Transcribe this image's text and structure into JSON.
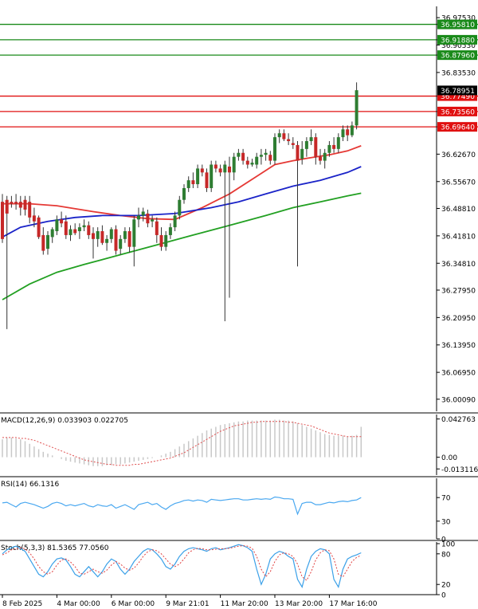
{
  "colors": {
    "background": "#ffffff",
    "bull": "#2e7d32",
    "bear": "#c62828",
    "ma_fast": "#e53935",
    "ma_mid": "#1a23c8",
    "ma_slow": "#22a022",
    "resistance": "#1a8a1a",
    "support": "#e01010",
    "macd_hist": "#c8c8c8",
    "macd_signal": "#e05050",
    "rsi": "#4aa8f0",
    "stoch_main": "#3aa0e8",
    "stoch_signal": "#e04040",
    "axis": "#000000"
  },
  "chart_data": [
    {
      "type": "candlestick",
      "name": "price",
      "title": "",
      "ylim": [
        35.97,
        37.0
      ],
      "y_ticks": [
        "36.97530",
        "36.90530",
        "36.83530",
        "36.62670",
        "36.55670",
        "36.48810",
        "36.41810",
        "36.34810",
        "36.27950",
        "36.20950",
        "36.13950",
        "36.06950",
        "36.00090"
      ],
      "grid": false,
      "x_labels": [
        "8 Feb 2025",
        "4 Mar 00:00",
        "6 Mar 00:00",
        "9 Mar 21:01",
        "11 Mar 20:00",
        "13 Mar 20:00",
        "17 Mar 16:00"
      ],
      "x_label_index": [
        0,
        12,
        24,
        36,
        48,
        60,
        72
      ],
      "candles": [
        {
          "o": 36.505,
          "h": 36.525,
          "l": 36.4,
          "c": 36.41
        },
        {
          "o": 36.51,
          "h": 36.52,
          "l": 36.18,
          "c": 36.475
        },
        {
          "o": 36.505,
          "h": 36.52,
          "l": 36.49,
          "c": 36.5
        },
        {
          "o": 36.505,
          "h": 36.525,
          "l": 36.485,
          "c": 36.5
        },
        {
          "o": 36.505,
          "h": 36.52,
          "l": 36.47,
          "c": 36.49
        },
        {
          "o": 36.51,
          "h": 36.52,
          "l": 36.47,
          "c": 36.485
        },
        {
          "o": 36.505,
          "h": 36.52,
          "l": 36.45,
          "c": 36.465
        },
        {
          "o": 36.47,
          "h": 36.49,
          "l": 36.44,
          "c": 36.455
        },
        {
          "o": 36.465,
          "h": 36.47,
          "l": 36.41,
          "c": 36.415
        },
        {
          "o": 36.42,
          "h": 36.44,
          "l": 36.37,
          "c": 36.38
        },
        {
          "o": 36.385,
          "h": 36.43,
          "l": 36.37,
          "c": 36.42
        },
        {
          "o": 36.415,
          "h": 36.44,
          "l": 36.4,
          "c": 36.435
        },
        {
          "o": 36.43,
          "h": 36.47,
          "l": 36.42,
          "c": 36.46
        },
        {
          "o": 36.46,
          "h": 36.48,
          "l": 36.44,
          "c": 36.45
        },
        {
          "o": 36.455,
          "h": 36.47,
          "l": 36.41,
          "c": 36.42
        },
        {
          "o": 36.42,
          "h": 36.445,
          "l": 36.405,
          "c": 36.435
        },
        {
          "o": 36.435,
          "h": 36.45,
          "l": 36.42,
          "c": 36.425
        },
        {
          "o": 36.43,
          "h": 36.45,
          "l": 36.41,
          "c": 36.44
        },
        {
          "o": 36.44,
          "h": 36.46,
          "l": 36.43,
          "c": 36.445
        },
        {
          "o": 36.445,
          "h": 36.455,
          "l": 36.41,
          "c": 36.42
        },
        {
          "o": 36.425,
          "h": 36.44,
          "l": 36.36,
          "c": 36.41
        },
        {
          "o": 36.41,
          "h": 36.44,
          "l": 36.39,
          "c": 36.43
        },
        {
          "o": 36.43,
          "h": 36.445,
          "l": 36.395,
          "c": 36.4
        },
        {
          "o": 36.4,
          "h": 36.42,
          "l": 36.38,
          "c": 36.41
        },
        {
          "o": 36.41,
          "h": 36.44,
          "l": 36.4,
          "c": 36.435
        },
        {
          "o": 36.435,
          "h": 36.445,
          "l": 36.37,
          "c": 36.38
        },
        {
          "o": 36.385,
          "h": 36.42,
          "l": 36.37,
          "c": 36.41
        },
        {
          "o": 36.41,
          "h": 36.44,
          "l": 36.4,
          "c": 36.43
        },
        {
          "o": 36.43,
          "h": 36.44,
          "l": 36.375,
          "c": 36.39
        },
        {
          "o": 36.39,
          "h": 36.47,
          "l": 36.34,
          "c": 36.46
        },
        {
          "o": 36.46,
          "h": 36.49,
          "l": 36.44,
          "c": 36.47
        },
        {
          "o": 36.47,
          "h": 36.49,
          "l": 36.455,
          "c": 36.48
        },
        {
          "o": 36.475,
          "h": 36.485,
          "l": 36.44,
          "c": 36.45
        },
        {
          "o": 36.455,
          "h": 36.47,
          "l": 36.44,
          "c": 36.46
        },
        {
          "o": 36.455,
          "h": 36.465,
          "l": 36.4,
          "c": 36.42
        },
        {
          "o": 36.42,
          "h": 36.44,
          "l": 36.38,
          "c": 36.39
        },
        {
          "o": 36.39,
          "h": 36.43,
          "l": 36.38,
          "c": 36.42
        },
        {
          "o": 36.42,
          "h": 36.45,
          "l": 36.41,
          "c": 36.44
        },
        {
          "o": 36.44,
          "h": 36.48,
          "l": 36.43,
          "c": 36.47
        },
        {
          "o": 36.47,
          "h": 36.52,
          "l": 36.46,
          "c": 36.51
        },
        {
          "o": 36.51,
          "h": 36.55,
          "l": 36.5,
          "c": 36.54
        },
        {
          "o": 36.54,
          "h": 36.57,
          "l": 36.53,
          "c": 36.56
        },
        {
          "o": 36.56,
          "h": 36.58,
          "l": 36.54,
          "c": 36.55
        },
        {
          "o": 36.55,
          "h": 36.6,
          "l": 36.54,
          "c": 36.59
        },
        {
          "o": 36.59,
          "h": 36.6,
          "l": 36.57,
          "c": 36.58
        },
        {
          "o": 36.58,
          "h": 36.59,
          "l": 36.53,
          "c": 36.54
        },
        {
          "o": 36.54,
          "h": 36.61,
          "l": 36.53,
          "c": 36.6
        },
        {
          "o": 36.6,
          "h": 36.61,
          "l": 36.58,
          "c": 36.59
        },
        {
          "o": 36.59,
          "h": 36.6,
          "l": 36.57,
          "c": 36.58
        },
        {
          "o": 36.58,
          "h": 36.61,
          "l": 36.2,
          "c": 36.6
        },
        {
          "o": 36.595,
          "h": 36.62,
          "l": 36.26,
          "c": 36.58
        },
        {
          "o": 36.58,
          "h": 36.63,
          "l": 36.56,
          "c": 36.62
        },
        {
          "o": 36.62,
          "h": 36.64,
          "l": 36.61,
          "c": 36.63
        },
        {
          "o": 36.63,
          "h": 36.64,
          "l": 36.6,
          "c": 36.61
        },
        {
          "o": 36.61,
          "h": 36.62,
          "l": 36.59,
          "c": 36.6
        },
        {
          "o": 36.6,
          "h": 36.615,
          "l": 36.595,
          "c": 36.605
        },
        {
          "o": 36.6,
          "h": 36.63,
          "l": 36.59,
          "c": 36.62
        },
        {
          "o": 36.62,
          "h": 36.64,
          "l": 36.6,
          "c": 36.625
        },
        {
          "o": 36.625,
          "h": 36.64,
          "l": 36.61,
          "c": 36.63
        },
        {
          "o": 36.625,
          "h": 36.635,
          "l": 36.6,
          "c": 36.61
        },
        {
          "o": 36.61,
          "h": 36.68,
          "l": 36.6,
          "c": 36.67
        },
        {
          "o": 36.67,
          "h": 36.69,
          "l": 36.655,
          "c": 36.68
        },
        {
          "o": 36.68,
          "h": 36.69,
          "l": 36.66,
          "c": 36.665
        },
        {
          "o": 36.665,
          "h": 36.68,
          "l": 36.65,
          "c": 36.66
        },
        {
          "o": 36.655,
          "h": 36.67,
          "l": 36.64,
          "c": 36.65
        },
        {
          "o": 36.65,
          "h": 36.66,
          "l": 36.34,
          "c": 36.61
        },
        {
          "o": 36.615,
          "h": 36.66,
          "l": 36.6,
          "c": 36.64
        },
        {
          "o": 36.64,
          "h": 36.67,
          "l": 36.62,
          "c": 36.66
        },
        {
          "o": 36.66,
          "h": 36.69,
          "l": 36.65,
          "c": 36.67
        },
        {
          "o": 36.67,
          "h": 36.68,
          "l": 36.6,
          "c": 36.62
        },
        {
          "o": 36.62,
          "h": 36.64,
          "l": 36.6,
          "c": 36.61
        },
        {
          "o": 36.61,
          "h": 36.64,
          "l": 36.59,
          "c": 36.63
        },
        {
          "o": 36.63,
          "h": 36.66,
          "l": 36.62,
          "c": 36.65
        },
        {
          "o": 36.65,
          "h": 36.67,
          "l": 36.63,
          "c": 36.64
        },
        {
          "o": 36.64,
          "h": 36.68,
          "l": 36.63,
          "c": 36.67
        },
        {
          "o": 36.67,
          "h": 36.7,
          "l": 36.66,
          "c": 36.69
        },
        {
          "o": 36.69,
          "h": 36.7,
          "l": 36.66,
          "c": 36.675
        },
        {
          "o": 36.675,
          "h": 36.71,
          "l": 36.67,
          "c": 36.7
        },
        {
          "o": 36.7,
          "h": 36.81,
          "l": 36.69,
          "c": 36.79
        }
      ],
      "ma_lines": [
        {
          "name": "ma-fast",
          "color_key": "ma_fast",
          "points": [
            [
              0,
              36.5
            ],
            [
              6,
              36.5
            ],
            [
              12,
              36.495
            ],
            [
              20,
              36.48
            ],
            [
              26,
              36.47
            ],
            [
              32,
              36.462
            ],
            [
              38,
              36.46
            ],
            [
              44,
              36.49
            ],
            [
              50,
              36.525
            ],
            [
              56,
              36.57
            ],
            [
              60,
              36.6
            ],
            [
              64,
              36.61
            ],
            [
              68,
              36.618
            ],
            [
              72,
              36.625
            ],
            [
              76,
              36.635
            ],
            [
              79,
              36.648
            ]
          ]
        },
        {
          "name": "ma-mid",
          "color_key": "ma_mid",
          "points": [
            [
              0,
              36.415
            ],
            [
              4,
              36.44
            ],
            [
              10,
              36.455
            ],
            [
              16,
              36.465
            ],
            [
              22,
              36.47
            ],
            [
              30,
              36.47
            ],
            [
              38,
              36.475
            ],
            [
              46,
              36.49
            ],
            [
              52,
              36.505
            ],
            [
              58,
              36.525
            ],
            [
              64,
              36.545
            ],
            [
              70,
              36.56
            ],
            [
              76,
              36.58
            ],
            [
              79,
              36.595
            ]
          ]
        },
        {
          "name": "ma-slow",
          "color_key": "ma_slow",
          "points": [
            [
              0,
              36.255
            ],
            [
              6,
              36.295
            ],
            [
              12,
              36.325
            ],
            [
              18,
              36.345
            ],
            [
              26,
              36.37
            ],
            [
              34,
              36.395
            ],
            [
              42,
              36.42
            ],
            [
              50,
              36.445
            ],
            [
              58,
              36.47
            ],
            [
              64,
              36.49
            ],
            [
              70,
              36.505
            ],
            [
              76,
              36.52
            ],
            [
              79,
              36.527
            ]
          ]
        }
      ],
      "level_lines": [
        {
          "value": 36.9581,
          "label": "36.95810",
          "kind": "resistance"
        },
        {
          "value": 36.9188,
          "label": "36.91880",
          "kind": "resistance"
        },
        {
          "value": 36.8796,
          "label": "36.87960",
          "kind": "resistance"
        },
        {
          "value": 36.7749,
          "label": "36.77490",
          "kind": "support"
        },
        {
          "value": 36.7356,
          "label": "36.73560",
          "kind": "support"
        },
        {
          "value": 36.6964,
          "label": "36.69640",
          "kind": "support"
        }
      ],
      "current_price": {
        "value": 36.78951,
        "label": "36.78951"
      }
    },
    {
      "type": "bar",
      "name": "macd",
      "title": "MACD(12,26,9) 0.033903 0.022705",
      "ylim": [
        -0.02,
        0.046
      ],
      "y_tick_values": [
        0.042763,
        0.0,
        -0.013116
      ],
      "y_tick_labels": [
        "0.042763",
        "0.00",
        "-0.013116"
      ],
      "histogram": [
        0.02,
        0.022,
        0.022,
        0.021,
        0.02,
        0.018,
        0.015,
        0.012,
        0.009,
        0.006,
        0.004,
        0.002,
        0.0,
        -0.002,
        -0.004,
        -0.005,
        -0.006,
        -0.007,
        -0.008,
        -0.009,
        -0.01,
        -0.01,
        -0.01,
        -0.009,
        -0.009,
        -0.008,
        -0.008,
        -0.007,
        -0.006,
        -0.005,
        -0.004,
        -0.003,
        -0.002,
        -0.001,
        0.0,
        0.002,
        0.004,
        0.006,
        0.009,
        0.012,
        0.015,
        0.018,
        0.021,
        0.024,
        0.027,
        0.03,
        0.032,
        0.034,
        0.036,
        0.037,
        0.038,
        0.039,
        0.04,
        0.04,
        0.041,
        0.041,
        0.041,
        0.041,
        0.041,
        0.041,
        0.042,
        0.042,
        0.041,
        0.041,
        0.04,
        0.038,
        0.036,
        0.034,
        0.032,
        0.03,
        0.028,
        0.026,
        0.025,
        0.024,
        0.024,
        0.024,
        0.023,
        0.024,
        0.025,
        0.034
      ],
      "signal": [
        0.022,
        0.022,
        0.022,
        0.022,
        0.021,
        0.021,
        0.02,
        0.019,
        0.017,
        0.015,
        0.013,
        0.011,
        0.009,
        0.007,
        0.005,
        0.003,
        0.001,
        -0.001,
        -0.003,
        -0.004,
        -0.005,
        -0.006,
        -0.007,
        -0.008,
        -0.008,
        -0.009,
        -0.009,
        -0.009,
        -0.009,
        -0.008,
        -0.008,
        -0.007,
        -0.006,
        -0.005,
        -0.004,
        -0.003,
        -0.002,
        -0.001,
        0.001,
        0.003,
        0.005,
        0.008,
        0.011,
        0.014,
        0.017,
        0.02,
        0.023,
        0.026,
        0.029,
        0.031,
        0.033,
        0.035,
        0.036,
        0.037,
        0.038,
        0.039,
        0.039,
        0.04,
        0.04,
        0.04,
        0.04,
        0.04,
        0.04,
        0.039,
        0.039,
        0.038,
        0.037,
        0.036,
        0.035,
        0.033,
        0.031,
        0.029,
        0.027,
        0.026,
        0.025,
        0.024,
        0.023,
        0.023,
        0.023,
        0.023
      ]
    },
    {
      "type": "line",
      "name": "rsi",
      "title": "RSI(14) 66.1316",
      "ylim": [
        0,
        100
      ],
      "y_ticks": [
        70,
        30,
        0
      ],
      "values": [
        61,
        62,
        58,
        54,
        60,
        62,
        60,
        58,
        55,
        52,
        55,
        60,
        62,
        60,
        56,
        58,
        56,
        58,
        60,
        56,
        54,
        58,
        56,
        55,
        58,
        52,
        55,
        58,
        54,
        50,
        58,
        60,
        62,
        58,
        60,
        54,
        50,
        56,
        60,
        62,
        65,
        66,
        64,
        66,
        65,
        62,
        67,
        66,
        65,
        66,
        67,
        68,
        68,
        66,
        66,
        67,
        68,
        67,
        68,
        67,
        71,
        70,
        68,
        68,
        67,
        42,
        60,
        62,
        62,
        58,
        58,
        60,
        62,
        61,
        63,
        64,
        63,
        65,
        66,
        70
      ]
    },
    {
      "type": "line",
      "name": "stoch",
      "title": "Stoch(5,3,3) 81.5365 77.0560",
      "ylim": [
        0,
        100
      ],
      "y_ticks": [
        100,
        80,
        20,
        0
      ],
      "main": [
        80,
        88,
        92,
        95,
        90,
        85,
        70,
        55,
        40,
        35,
        45,
        60,
        70,
        72,
        68,
        55,
        40,
        35,
        45,
        55,
        45,
        35,
        45,
        60,
        70,
        65,
        50,
        40,
        50,
        65,
        75,
        85,
        90,
        88,
        80,
        70,
        55,
        50,
        60,
        75,
        85,
        90,
        92,
        90,
        88,
        85,
        90,
        92,
        88,
        90,
        92,
        95,
        98,
        96,
        92,
        85,
        50,
        20,
        40,
        70,
        80,
        85,
        82,
        75,
        70,
        30,
        15,
        50,
        75,
        85,
        90,
        88,
        80,
        30,
        15,
        50,
        70,
        75,
        78,
        82
      ],
      "signal": [
        78,
        82,
        88,
        90,
        92,
        90,
        82,
        70,
        55,
        45,
        40,
        45,
        58,
        68,
        70,
        64,
        55,
        42,
        40,
        45,
        50,
        45,
        42,
        48,
        58,
        65,
        60,
        52,
        48,
        52,
        62,
        75,
        84,
        88,
        86,
        80,
        70,
        60,
        55,
        60,
        70,
        82,
        88,
        91,
        90,
        88,
        88,
        89,
        90,
        90,
        91,
        93,
        95,
        96,
        95,
        91,
        75,
        50,
        35,
        45,
        65,
        78,
        82,
        80,
        75,
        60,
        35,
        28,
        45,
        68,
        82,
        88,
        86,
        70,
        40,
        35,
        50,
        65,
        73,
        77
      ]
    }
  ]
}
